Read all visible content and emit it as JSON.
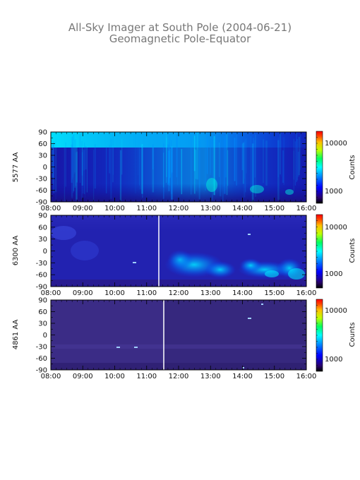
{
  "chart_data": {
    "type": "heatmap",
    "title": "All-Sky Imager at South Pole (2004-06-21)",
    "subtitle": "Geomagnetic Pole-Equator",
    "colormap": "rainbow",
    "panels": [
      {
        "ylabel": "5577 AA",
        "y_ticks": [
          "90",
          "60",
          "30",
          "0",
          "-30",
          "-60",
          "-90"
        ],
        "x_ticks": [
          "08:00",
          "09:00",
          "10:00",
          "11:00",
          "12:00",
          "13:00",
          "14:00",
          "15:00",
          "16:00"
        ],
        "colorbar": {
          "label": "Counts",
          "ticks": [
            "10000",
            "1000"
          ]
        },
        "gaps": []
      },
      {
        "ylabel": "6300 AA",
        "y_ticks": [
          "90",
          "60",
          "30",
          "0",
          "-30",
          "-60",
          "-90"
        ],
        "x_ticks": [
          "08:00",
          "09:00",
          "10:00",
          "11:00",
          "12:00",
          "13:00",
          "14:00",
          "15:00",
          "16:00"
        ],
        "colorbar": {
          "label": "Counts",
          "ticks": [
            "10000",
            "1000"
          ]
        },
        "gaps": [
          "11:25"
        ]
      },
      {
        "ylabel": "4861 AA",
        "y_ticks": [
          "90",
          "60",
          "30",
          "0",
          "-30",
          "-60",
          "-90"
        ],
        "x_ticks": [
          "08:00",
          "09:00",
          "10:00",
          "11:00",
          "12:00",
          "13:00",
          "14:00",
          "15:00",
          "16:00"
        ],
        "colorbar": {
          "label": "Counts",
          "ticks": [
            "10000",
            "1000"
          ]
        },
        "gaps": [
          "11:35"
        ]
      }
    ],
    "colors": {
      "background_5577": "#1a1aa0",
      "background_6300": "#2020a8",
      "background_4861": "#3a2a80"
    }
  }
}
